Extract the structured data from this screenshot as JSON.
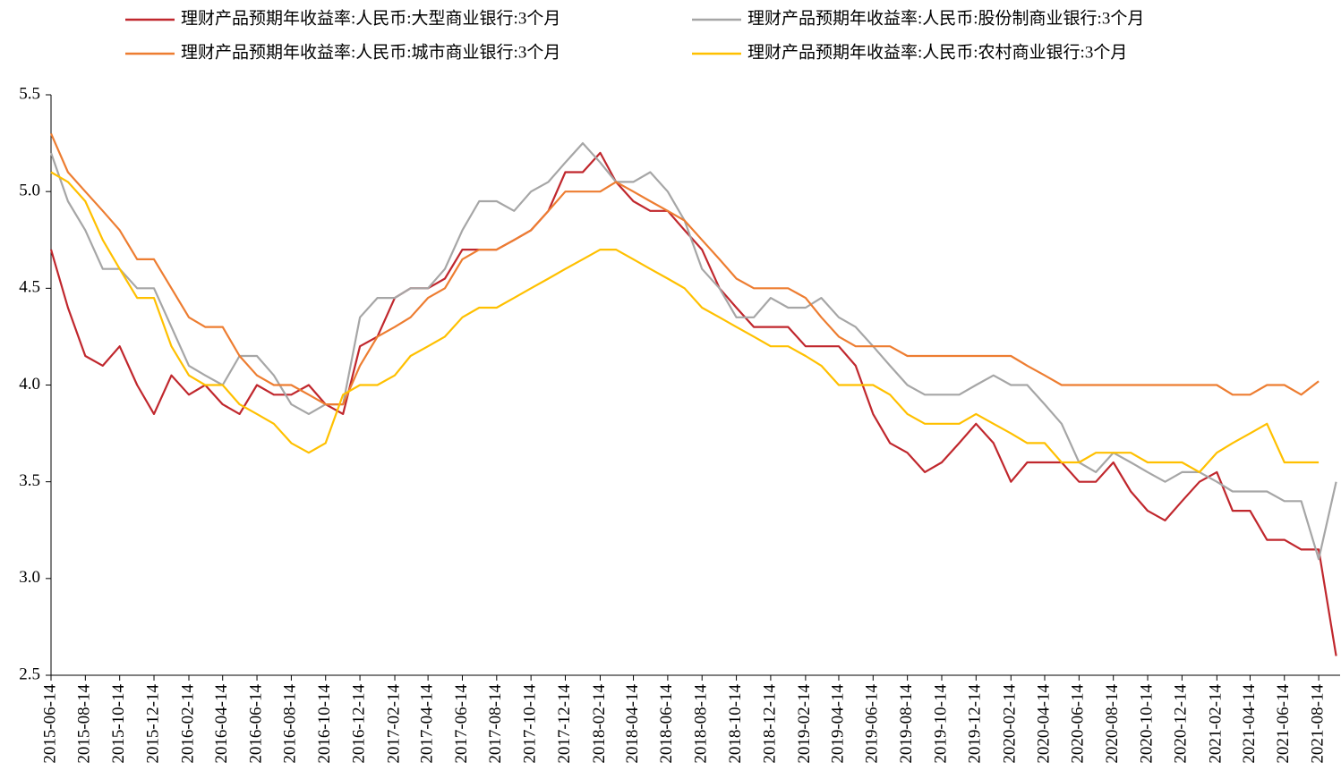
{
  "chart_data": {
    "type": "line",
    "x": [
      "2015-06-14",
      "2015-07-14",
      "2015-08-14",
      "2015-09-14",
      "2015-10-14",
      "2015-11-14",
      "2015-12-14",
      "2016-01-14",
      "2016-02-14",
      "2016-03-14",
      "2016-04-14",
      "2016-05-14",
      "2016-06-14",
      "2016-07-14",
      "2016-08-14",
      "2016-09-14",
      "2016-10-14",
      "2016-11-14",
      "2016-12-14",
      "2017-01-14",
      "2017-02-14",
      "2017-03-14",
      "2017-04-14",
      "2017-05-14",
      "2017-06-14",
      "2017-07-14",
      "2017-08-14",
      "2017-09-14",
      "2017-10-14",
      "2017-11-14",
      "2017-12-14",
      "2018-01-14",
      "2018-02-14",
      "2018-03-14",
      "2018-04-14",
      "2018-05-14",
      "2018-06-14",
      "2018-07-14",
      "2018-08-14",
      "2018-09-14",
      "2018-10-14",
      "2018-11-14",
      "2018-12-14",
      "2019-01-14",
      "2019-02-14",
      "2019-03-14",
      "2019-04-14",
      "2019-05-14",
      "2019-06-14",
      "2019-07-14",
      "2019-08-14",
      "2019-09-14",
      "2019-10-14",
      "2019-11-14",
      "2019-12-14",
      "2020-01-14",
      "2020-02-14",
      "2020-03-14",
      "2020-04-14",
      "2020-05-14",
      "2020-06-14",
      "2020-07-14",
      "2020-08-14",
      "2020-09-14",
      "2020-10-14",
      "2020-11-14",
      "2020-12-14",
      "2021-01-14",
      "2021-02-14",
      "2021-03-14",
      "2021-04-14",
      "2021-05-14",
      "2021-06-14",
      "2021-07-14",
      "2021-08-14",
      "2021-09-14"
    ],
    "xlim": [
      "2015-06-14",
      "2021-09-21"
    ],
    "xticks": [
      "2015-06-14",
      "2015-08-14",
      "2015-10-14",
      "2015-12-14",
      "2016-02-14",
      "2016-04-14",
      "2016-06-14",
      "2016-08-14",
      "2016-10-14",
      "2016-12-14",
      "2017-02-14",
      "2017-04-14",
      "2017-06-14",
      "2017-08-14",
      "2017-10-14",
      "2017-12-14",
      "2018-02-14",
      "2018-04-14",
      "2018-06-14",
      "2018-08-14",
      "2018-10-14",
      "2018-12-14",
      "2019-02-14",
      "2019-04-14",
      "2019-06-14",
      "2019-08-14",
      "2019-10-14",
      "2019-12-14",
      "2020-02-14",
      "2020-04-14",
      "2020-06-14",
      "2020-08-14",
      "2020-10-14",
      "2020-12-14",
      "2021-02-14",
      "2021-04-14",
      "2021-06-14",
      "2021-08-14"
    ],
    "ylim": [
      2.5,
      5.5
    ],
    "yticks": [
      2.5,
      {
        "value": 3,
        "label": "3.0"
      },
      3.5,
      {
        "value": 4,
        "label": "4.0"
      },
      4.5,
      {
        "value": 5,
        "label": "5.0"
      },
      5.5
    ],
    "series": [
      {
        "name": "理财产品预期年收益率:人民币:大型商业银行:3个月",
        "color": "#c0272d",
        "values": [
          4.7,
          4.4,
          4.15,
          4.1,
          4.2,
          4.0,
          3.85,
          4.05,
          3.95,
          4.0,
          3.9,
          3.85,
          4.0,
          3.95,
          3.95,
          4.0,
          3.9,
          3.85,
          4.2,
          4.25,
          4.45,
          4.5,
          4.5,
          4.55,
          4.7,
          4.7,
          4.7,
          4.75,
          4.8,
          4.9,
          5.1,
          5.1,
          5.2,
          5.05,
          4.95,
          4.9,
          4.9,
          4.8,
          4.7,
          4.5,
          4.4,
          4.3,
          4.3,
          4.3,
          4.2,
          4.2,
          4.2,
          4.1,
          3.85,
          3.7,
          3.65,
          3.55,
          3.6,
          3.7,
          3.8,
          3.7,
          3.5,
          3.6,
          3.6,
          3.6,
          3.5,
          3.5,
          3.6,
          3.45,
          3.35,
          3.3,
          3.4,
          3.5,
          3.55,
          3.35,
          3.35,
          3.2,
          3.2,
          3.15,
          3.15,
          2.6
        ]
      },
      {
        "name": "理财产品预期年收益率:人民币:股份制商业银行:3个月",
        "color": "#a6a6a6",
        "values": [
          5.2,
          4.95,
          4.8,
          4.6,
          4.6,
          4.5,
          4.5,
          4.3,
          4.1,
          4.05,
          4.0,
          4.15,
          4.15,
          4.05,
          3.9,
          3.85,
          3.9,
          3.9,
          4.35,
          4.45,
          4.45,
          4.5,
          4.5,
          4.6,
          4.8,
          4.95,
          4.95,
          4.9,
          5.0,
          5.05,
          5.15,
          5.25,
          5.15,
          5.05,
          5.05,
          5.1,
          5.0,
          4.85,
          4.6,
          4.5,
          4.35,
          4.35,
          4.45,
          4.4,
          4.4,
          4.45,
          4.35,
          4.3,
          4.2,
          4.1,
          4.0,
          3.95,
          3.95,
          3.95,
          4.0,
          4.05,
          4.0,
          4.0,
          3.9,
          3.8,
          3.6,
          3.55,
          3.65,
          3.6,
          3.55,
          3.5,
          3.55,
          3.55,
          3.5,
          3.45,
          3.45,
          3.45,
          3.4,
          3.4,
          3.1,
          3.5
        ]
      },
      {
        "name": "理财产品预期年收益率:人民币:城市商业银行:3个月",
        "color": "#ed7d31",
        "values": [
          5.3,
          5.1,
          5.0,
          4.9,
          4.8,
          4.65,
          4.65,
          4.5,
          4.35,
          4.3,
          4.3,
          4.15,
          4.05,
          4.0,
          4.0,
          3.95,
          3.9,
          3.9,
          4.1,
          4.25,
          4.3,
          4.35,
          4.45,
          4.5,
          4.65,
          4.7,
          4.7,
          4.75,
          4.8,
          4.9,
          5.0,
          5.0,
          5.0,
          5.05,
          5.0,
          4.95,
          4.9,
          4.85,
          4.75,
          4.65,
          4.55,
          4.5,
          4.5,
          4.5,
          4.45,
          4.35,
          4.25,
          4.2,
          4.2,
          4.2,
          4.15,
          4.15,
          4.15,
          4.15,
          4.15,
          4.15,
          4.15,
          4.1,
          4.05,
          4.0,
          4.0,
          4.0,
          4.0,
          4.0,
          4.0,
          4.0,
          4.0,
          4.0,
          4.0,
          3.95,
          3.95,
          4.0,
          4.0,
          3.95,
          4.02,
          null
        ]
      },
      {
        "name": "理财产品预期年收益率:人民币:农村商业银行:3个月",
        "color": "#ffc000",
        "values": [
          5.1,
          5.05,
          4.95,
          4.75,
          4.6,
          4.45,
          4.45,
          4.2,
          4.05,
          4.0,
          4.0,
          3.9,
          3.85,
          3.8,
          3.7,
          3.65,
          3.7,
          3.95,
          4.0,
          4.0,
          4.05,
          4.15,
          4.2,
          4.25,
          4.35,
          4.4,
          4.4,
          4.45,
          4.5,
          4.55,
          4.6,
          4.65,
          4.7,
          4.7,
          4.65,
          4.6,
          4.55,
          4.5,
          4.4,
          4.35,
          4.3,
          4.25,
          4.2,
          4.2,
          4.15,
          4.1,
          4.0,
          4.0,
          4.0,
          3.95,
          3.85,
          3.8,
          3.8,
          3.8,
          3.85,
          3.8,
          3.75,
          3.7,
          3.7,
          3.6,
          3.6,
          3.65,
          3.65,
          3.65,
          3.6,
          3.6,
          3.6,
          3.55,
          3.65,
          3.7,
          3.75,
          3.8,
          3.6,
          3.6,
          3.6,
          null
        ]
      }
    ]
  }
}
